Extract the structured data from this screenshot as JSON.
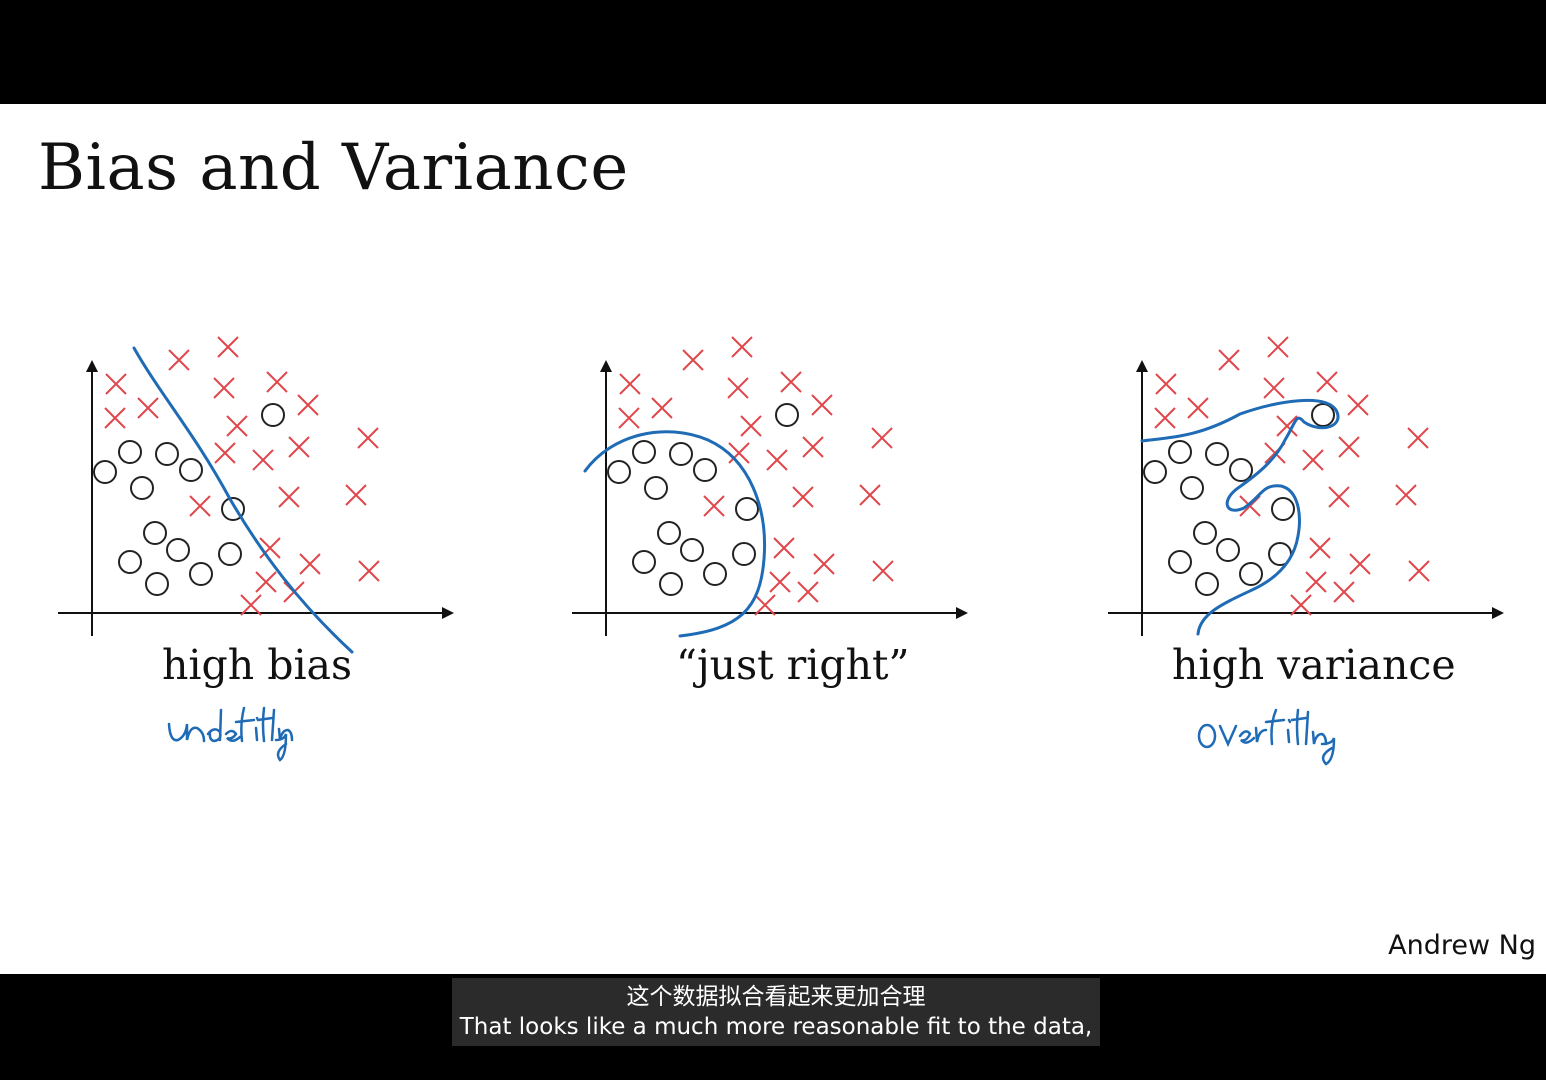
{
  "slide": {
    "title": "Bias and Variance",
    "author": "Andrew Ng"
  },
  "panels": [
    {
      "label": "high bias",
      "note": "underfitting"
    },
    {
      "label": "“just right”",
      "note": ""
    },
    {
      "label": "high variance",
      "note": "overfitting"
    }
  ],
  "subtitle": {
    "zh": "这个数据拟合看起来更加合理",
    "en": "That looks like a much more reasonable fit to the data,"
  },
  "colors": {
    "cross": "#e0474c",
    "circle": "#222222",
    "fit_line": "#1f6bb5",
    "axis": "#111111"
  }
}
